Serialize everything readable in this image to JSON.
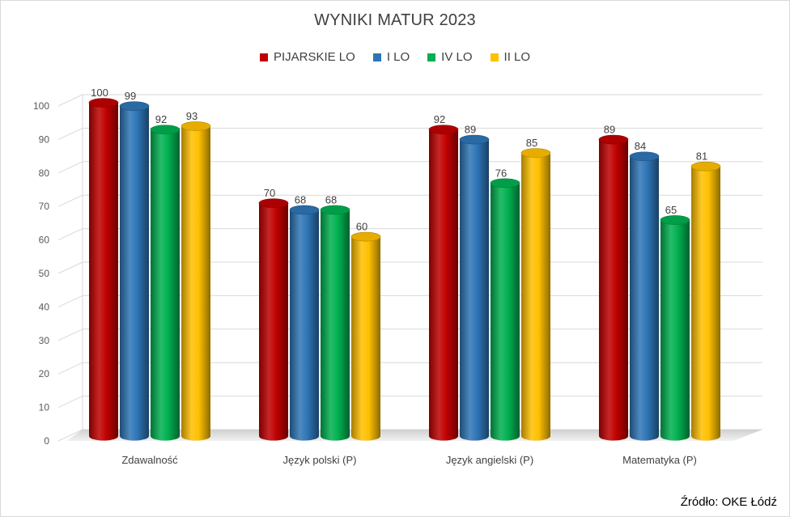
{
  "chart_data": {
    "type": "bar",
    "title": "WYNIKI MATUR 2023",
    "categories": [
      "Zdawalność",
      "Język polski (P)",
      "Język angielski (P)",
      "Matematyka (P)"
    ],
    "series": [
      {
        "name": "PIJARSKIE LO",
        "color": "#c00000",
        "values": [
          100,
          70,
          92,
          89
        ]
      },
      {
        "name": "I LO",
        "color": "#2e75b6",
        "values": [
          99,
          68,
          89,
          84
        ]
      },
      {
        "name": "IV LO",
        "color": "#00b050",
        "values": [
          92,
          68,
          76,
          65
        ]
      },
      {
        "name": "II LO",
        "color": "#ffc000",
        "values": [
          93,
          60,
          85,
          81
        ]
      }
    ],
    "ylim": [
      0,
      100
    ],
    "yticks": [
      0,
      10,
      20,
      30,
      40,
      50,
      60,
      70,
      80,
      90,
      100
    ],
    "grid": true,
    "legend_position": "top",
    "source": "Źródło: OKE Łódź"
  }
}
